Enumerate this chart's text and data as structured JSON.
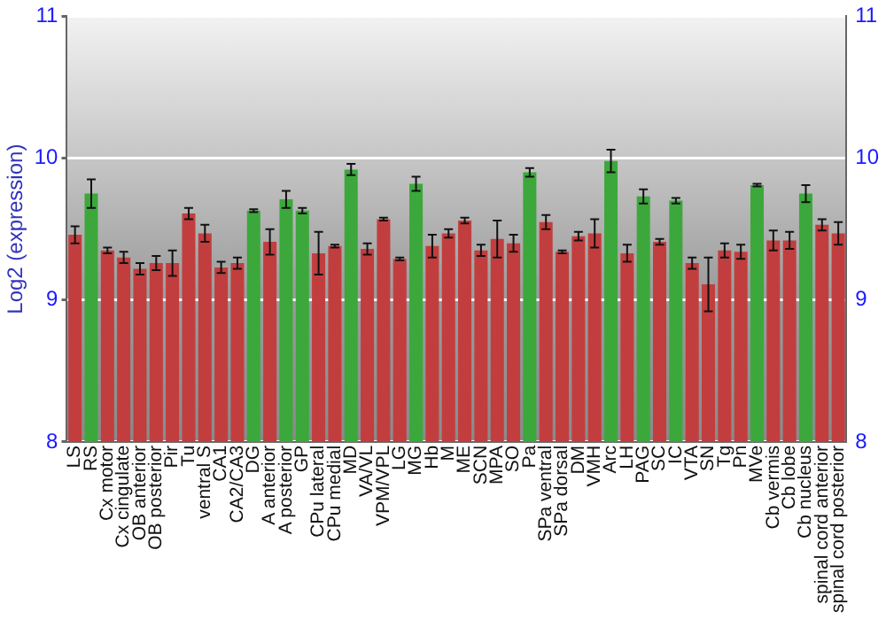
{
  "chart_data": {
    "type": "bar",
    "ylabel": "Log2 (expression)",
    "categories": [
      "LS",
      "RS",
      "Cx motor",
      "Cx cingulate",
      "OB anterior",
      "OB posterior",
      "Pir",
      "Tu",
      "ventral S",
      "CA1",
      "CA2/CA3",
      "DG",
      "A anterior",
      "A posterior",
      "GP",
      "CPu lateral",
      "CPu medial",
      "MD",
      "VA/VL",
      "VPM/VPL",
      "LG",
      "MG",
      "Hb",
      "M",
      "ME",
      "SCN",
      "MPA",
      "SO",
      "Pa",
      "SPa ventral",
      "SPa dorsal",
      "DM",
      "VMH",
      "Arc",
      "LH",
      "PAG",
      "SC",
      "IC",
      "VTA",
      "SN",
      "Tg",
      "Pn",
      "MVe",
      "Cb vermis",
      "Cb lobe",
      "Cb nucleus",
      "spinal cord anterior",
      "spinal cord posterior"
    ],
    "values": [
      9.46,
      9.75,
      9.35,
      9.3,
      9.22,
      9.26,
      9.26,
      9.61,
      9.47,
      9.23,
      9.26,
      9.63,
      9.41,
      9.71,
      9.63,
      9.33,
      9.38,
      9.92,
      9.36,
      9.57,
      9.29,
      9.82,
      9.38,
      9.47,
      9.56,
      9.35,
      9.43,
      9.4,
      9.9,
      9.55,
      9.34,
      9.45,
      9.47,
      9.98,
      9.33,
      9.73,
      9.41,
      9.7,
      9.26,
      9.11,
      9.35,
      9.34,
      9.81,
      9.42,
      9.42,
      9.75,
      9.53,
      9.47
    ],
    "errors": [
      0.06,
      0.1,
      0.02,
      0.04,
      0.04,
      0.05,
      0.09,
      0.04,
      0.06,
      0.04,
      0.04,
      0.01,
      0.09,
      0.06,
      0.02,
      0.15,
      0.01,
      0.04,
      0.04,
      0.01,
      0.01,
      0.05,
      0.08,
      0.03,
      0.02,
      0.04,
      0.13,
      0.06,
      0.03,
      0.05,
      0.01,
      0.03,
      0.1,
      0.08,
      0.06,
      0.05,
      0.02,
      0.02,
      0.04,
      0.19,
      0.05,
      0.05,
      0.01,
      0.07,
      0.06,
      0.06,
      0.04,
      0.08
    ],
    "colors": [
      "#c23e3e",
      "#3ca83c",
      "#c23e3e",
      "#c23e3e",
      "#c23e3e",
      "#c23e3e",
      "#c23e3e",
      "#c23e3e",
      "#c23e3e",
      "#c23e3e",
      "#c23e3e",
      "#3ca83c",
      "#c23e3e",
      "#3ca83c",
      "#3ca83c",
      "#c23e3e",
      "#c23e3e",
      "#3ca83c",
      "#c23e3e",
      "#c23e3e",
      "#c23e3e",
      "#3ca83c",
      "#c23e3e",
      "#c23e3e",
      "#c23e3e",
      "#c23e3e",
      "#c23e3e",
      "#c23e3e",
      "#3ca83c",
      "#c23e3e",
      "#c23e3e",
      "#c23e3e",
      "#c23e3e",
      "#3ca83c",
      "#c23e3e",
      "#3ca83c",
      "#c23e3e",
      "#3ca83c",
      "#c23e3e",
      "#c23e3e",
      "#c23e3e",
      "#c23e3e",
      "#3ca83c",
      "#c23e3e",
      "#c23e3e",
      "#3ca83c",
      "#c23e3e",
      "#c23e3e"
    ],
    "ylim": [
      8,
      11
    ],
    "yticks": [
      8,
      9,
      10,
      11
    ],
    "y2lim": [
      8,
      11
    ],
    "y2ticks": [
      8,
      9,
      10,
      11
    ],
    "grid": "y",
    "legend": false
  }
}
